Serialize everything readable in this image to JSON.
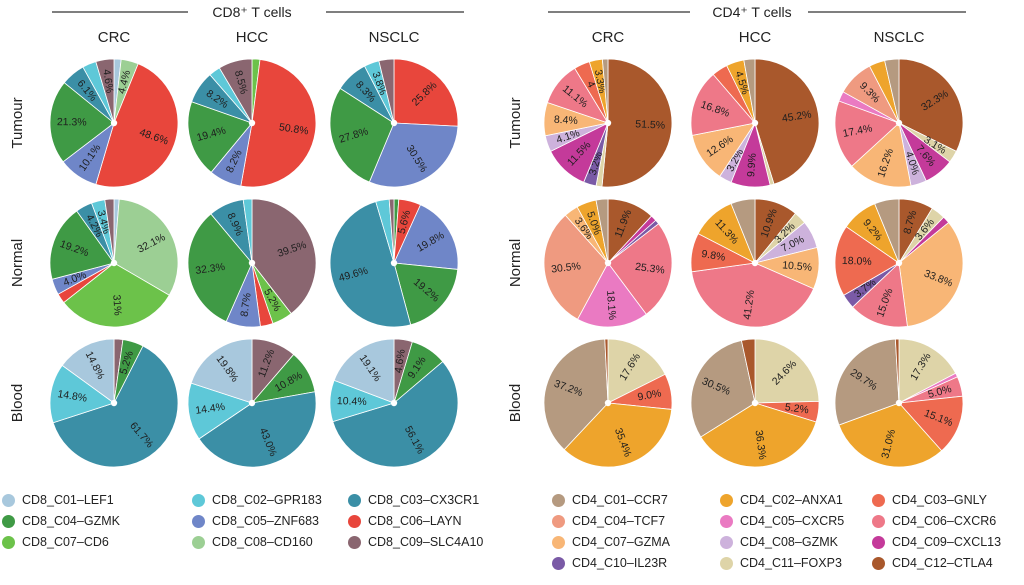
{
  "chart_data": [
    {
      "type": "pie",
      "title": "CD8⁺ T cells",
      "columns": [
        "CRC",
        "HCC",
        "NSCLC"
      ],
      "rows": [
        "Tumour",
        "Normal",
        "Blood"
      ],
      "legend": [
        {
          "name": "CD8_C01–LEF1",
          "color": "#a8c8dd"
        },
        {
          "name": "CD8_C02–GPR183",
          "color": "#5ec8d8"
        },
        {
          "name": "CD8_C03–CX3CR1",
          "color": "#3b8fa6"
        },
        {
          "name": "CD8_C04–GZMK",
          "color": "#3f9a45"
        },
        {
          "name": "CD8_C05–ZNF683",
          "color": "#6f86c8"
        },
        {
          "name": "CD8_C06–LAYN",
          "color": "#e8463c"
        },
        {
          "name": "CD8_C07–CD6",
          "color": "#6cc24a"
        },
        {
          "name": "CD8_C08–CD160",
          "color": "#9ccf94"
        },
        {
          "name": "CD8_C09–SLC4A10",
          "color": "#8a6670"
        }
      ],
      "pies": [
        {
          "row": "Tumour",
          "col": "CRC",
          "slices": [
            {
              "cluster": 0,
              "value": 1.8,
              "label": ""
            },
            {
              "cluster": 7,
              "value": 4.4,
              "label": "4.4%"
            },
            {
              "cluster": 5,
              "value": 48.6,
              "label": "48.6%"
            },
            {
              "cluster": 4,
              "value": 10.1,
              "label": "10.1%"
            },
            {
              "cluster": 3,
              "value": 21.3,
              "label": "21.3%"
            },
            {
              "cluster": 2,
              "value": 6.1,
              "label": "6.1%"
            },
            {
              "cluster": 1,
              "value": 3.5,
              "label": ""
            },
            {
              "cluster": 8,
              "value": 4.6,
              "label": "4.6%"
            }
          ]
        },
        {
          "row": "Tumour",
          "col": "HCC",
          "slices": [
            {
              "cluster": 6,
              "value": 2.0,
              "label": ""
            },
            {
              "cluster": 5,
              "value": 50.8,
              "label": "50.8%"
            },
            {
              "cluster": 4,
              "value": 8.2,
              "label": "8.2%"
            },
            {
              "cluster": 3,
              "value": 19.4,
              "label": "19.4%"
            },
            {
              "cluster": 2,
              "value": 8.2,
              "label": "8.2%"
            },
            {
              "cluster": 1,
              "value": 2.9,
              "label": ""
            },
            {
              "cluster": 8,
              "value": 8.5,
              "label": "8.5%"
            }
          ]
        },
        {
          "row": "Tumour",
          "col": "NSCLC",
          "slices": [
            {
              "cluster": 5,
              "value": 25.8,
              "label": "25.8%"
            },
            {
              "cluster": 4,
              "value": 30.5,
              "label": "30.5%"
            },
            {
              "cluster": 3,
              "value": 27.8,
              "label": "27.8%"
            },
            {
              "cluster": 2,
              "value": 8.3,
              "label": "8.3%"
            },
            {
              "cluster": 1,
              "value": 3.8,
              "label": "3.8%"
            },
            {
              "cluster": 8,
              "value": 3.8,
              "label": ""
            }
          ]
        },
        {
          "row": "Normal",
          "col": "CRC",
          "slices": [
            {
              "cluster": 0,
              "value": 1.3,
              "label": ""
            },
            {
              "cluster": 7,
              "value": 32.1,
              "label": "32.1%"
            },
            {
              "cluster": 6,
              "value": 31.0,
              "label": "31%"
            },
            {
              "cluster": 5,
              "value": 2.5,
              "label": ""
            },
            {
              "cluster": 4,
              "value": 4.0,
              "label": "4.0%"
            },
            {
              "cluster": 3,
              "value": 19.2,
              "label": "19.2%"
            },
            {
              "cluster": 2,
              "value": 4.2,
              "label": "4.2%"
            },
            {
              "cluster": 1,
              "value": 3.4,
              "label": "3.4%"
            },
            {
              "cluster": 8,
              "value": 2.3,
              "label": ""
            }
          ]
        },
        {
          "row": "Normal",
          "col": "HCC",
          "slices": [
            {
              "cluster": 8,
              "value": 39.5,
              "label": "39.5%"
            },
            {
              "cluster": 6,
              "value": 5.2,
              "label": "5.2%"
            },
            {
              "cluster": 5,
              "value": 3.2,
              "label": ""
            },
            {
              "cluster": 4,
              "value": 8.7,
              "label": "8.7%"
            },
            {
              "cluster": 3,
              "value": 32.3,
              "label": "32.3%"
            },
            {
              "cluster": 2,
              "value": 8.9,
              "label": "8.9%"
            },
            {
              "cluster": 1,
              "value": 2.2,
              "label": ""
            }
          ]
        },
        {
          "row": "Normal",
          "col": "NSCLC",
          "slices": [
            {
              "cluster": 3,
              "value": 1.2,
              "label": ""
            },
            {
              "cluster": 5,
              "value": 5.6,
              "label": "5.6%"
            },
            {
              "cluster": 4,
              "value": 19.8,
              "label": "19.8%"
            },
            {
              "cluster": 3,
              "value": 19.2,
              "label": "19.2%"
            },
            {
              "cluster": 2,
              "value": 49.6,
              "label": "49.6%"
            },
            {
              "cluster": 1,
              "value": 3.4,
              "label": ""
            },
            {
              "cluster": 8,
              "value": 1.2,
              "label": ""
            }
          ]
        },
        {
          "row": "Blood",
          "col": "CRC",
          "slices": [
            {
              "cluster": 8,
              "value": 2.2,
              "label": ""
            },
            {
              "cluster": 3,
              "value": 5.2,
              "label": "5.2%"
            },
            {
              "cluster": 2,
              "value": 61.7,
              "label": "61.7%"
            },
            {
              "cluster": 1,
              "value": 14.8,
              "label": "14.8%"
            },
            {
              "cluster": 0,
              "value": 14.8,
              "label": "14.8%"
            }
          ]
        },
        {
          "row": "Blood",
          "col": "HCC",
          "slices": [
            {
              "cluster": 8,
              "value": 11.2,
              "label": "11.2%"
            },
            {
              "cluster": 3,
              "value": 10.8,
              "label": "10.8%"
            },
            {
              "cluster": 2,
              "value": 43.0,
              "label": "43.0%"
            },
            {
              "cluster": 1,
              "value": 14.4,
              "label": "14.4%"
            },
            {
              "cluster": 0,
              "value": 19.8,
              "label": "19.8%"
            }
          ]
        },
        {
          "row": "Blood",
          "col": "NSCLC",
          "slices": [
            {
              "cluster": 8,
              "value": 4.6,
              "label": "4.6%"
            },
            {
              "cluster": 3,
              "value": 9.1,
              "label": "9.1%"
            },
            {
              "cluster": 2,
              "value": 56.1,
              "label": "56.1%"
            },
            {
              "cluster": 1,
              "value": 10.4,
              "label": "10.4%"
            },
            {
              "cluster": 0,
              "value": 19.1,
              "label": "19.1%"
            }
          ]
        }
      ]
    },
    {
      "type": "pie",
      "title": "CD4⁺ T cells",
      "columns": [
        "CRC",
        "HCC",
        "NSCLC"
      ],
      "rows": [
        "Tumour",
        "Normal",
        "Blood"
      ],
      "legend": [
        {
          "name": "CD4_C01–CCR7",
          "color": "#b59a80"
        },
        {
          "name": "CD4_C02–ANXA1",
          "color": "#eea42c"
        },
        {
          "name": "CD4_C03–GNLY",
          "color": "#ee6a50"
        },
        {
          "name": "CD4_C04–TCF7",
          "color": "#ef9a80"
        },
        {
          "name": "CD4_C05–CXCR5",
          "color": "#ea7ac2"
        },
        {
          "name": "CD4_C06–CXCR6",
          "color": "#ee7888"
        },
        {
          "name": "CD4_C07–GZMA",
          "color": "#f8b676"
        },
        {
          "name": "CD4_C08–GZMK",
          "color": "#cdb2dc"
        },
        {
          "name": "CD4_C09–CXCL13",
          "color": "#c43a9a"
        },
        {
          "name": "CD4_C10–IL23R",
          "color": "#7a5aa6"
        },
        {
          "name": "CD4_C11–FOXP3",
          "color": "#ded4a8"
        },
        {
          "name": "CD4_C12–CTLA4",
          "color": "#a9582c"
        }
      ],
      "pies": [
        {
          "row": "Tumour",
          "col": "CRC",
          "slices": [
            {
              "cluster": 11,
              "value": 51.5,
              "label": "51.5%"
            },
            {
              "cluster": 10,
              "value": 1.5,
              "label": ""
            },
            {
              "cluster": 9,
              "value": 3.2,
              "label": "3.2%"
            },
            {
              "cluster": 8,
              "value": 11.5,
              "label": "11.5%"
            },
            {
              "cluster": 7,
              "value": 4.1,
              "label": "4.1%"
            },
            {
              "cluster": 6,
              "value": 8.4,
              "label": "8.4%"
            },
            {
              "cluster": 5,
              "value": 11.1,
              "label": "11.1%"
            },
            {
              "cluster": 2,
              "value": 4.0,
              "label": "4"
            },
            {
              "cluster": 1,
              "value": 3.3,
              "label": "3.3%"
            },
            {
              "cluster": 0,
              "value": 1.4,
              "label": ""
            }
          ]
        },
        {
          "row": "Tumour",
          "col": "HCC",
          "slices": [
            {
              "cluster": 11,
              "value": 45.2,
              "label": "45.2%"
            },
            {
              "cluster": 10,
              "value": 1.0,
              "label": ""
            },
            {
              "cluster": 8,
              "value": 9.9,
              "label": "9.9%"
            },
            {
              "cluster": 7,
              "value": 3.2,
              "label": "3.2%"
            },
            {
              "cluster": 6,
              "value": 12.6,
              "label": "12.6%"
            },
            {
              "cluster": 5,
              "value": 16.8,
              "label": "16.8%"
            },
            {
              "cluster": 2,
              "value": 4.0,
              "label": ""
            },
            {
              "cluster": 1,
              "value": 4.5,
              "label": "4.5%"
            },
            {
              "cluster": 0,
              "value": 2.8,
              "label": ""
            }
          ]
        },
        {
          "row": "Tumour",
          "col": "NSCLC",
          "slices": [
            {
              "cluster": 11,
              "value": 32.3,
              "label": "32.3%"
            },
            {
              "cluster": 10,
              "value": 3.1,
              "label": "3.1%"
            },
            {
              "cluster": 8,
              "value": 7.6,
              "label": "7.6%"
            },
            {
              "cluster": 7,
              "value": 4.0,
              "label": "4.0%"
            },
            {
              "cluster": 6,
              "value": 16.2,
              "label": "16.2%"
            },
            {
              "cluster": 5,
              "value": 17.4,
              "label": "17.4%"
            },
            {
              "cluster": 4,
              "value": 2.5,
              "label": ""
            },
            {
              "cluster": 3,
              "value": 9.3,
              "label": "9.3%"
            },
            {
              "cluster": 1,
              "value": 4.0,
              "label": ""
            },
            {
              "cluster": 0,
              "value": 3.6,
              "label": ""
            }
          ]
        },
        {
          "row": "Normal",
          "col": "CRC",
          "slices": [
            {
              "cluster": 11,
              "value": 11.9,
              "label": "11.9%"
            },
            {
              "cluster": 8,
              "value": 1.5,
              "label": ""
            },
            {
              "cluster": 9,
              "value": 1.1,
              "label": ""
            },
            {
              "cluster": 5,
              "value": 25.3,
              "label": "25.3%"
            },
            {
              "cluster": 4,
              "value": 18.1,
              "label": "18.1%"
            },
            {
              "cluster": 3,
              "value": 30.5,
              "label": "30.5%"
            },
            {
              "cluster": 6,
              "value": 3.6,
              "label": "3.6%"
            },
            {
              "cluster": 1,
              "value": 5.0,
              "label": "5.0%"
            },
            {
              "cluster": 0,
              "value": 3.0,
              "label": ""
            }
          ]
        },
        {
          "row": "Normal",
          "col": "HCC",
          "slices": [
            {
              "cluster": 11,
              "value": 10.9,
              "label": "10.9%"
            },
            {
              "cluster": 10,
              "value": 3.2,
              "label": "3.2%"
            },
            {
              "cluster": 7,
              "value": 7.0,
              "label": "7.0%"
            },
            {
              "cluster": 6,
              "value": 10.5,
              "label": "10.5%"
            },
            {
              "cluster": 5,
              "value": 41.2,
              "label": "41.2%"
            },
            {
              "cluster": 2,
              "value": 9.8,
              "label": "9.8%"
            },
            {
              "cluster": 1,
              "value": 11.3,
              "label": "11.3%"
            },
            {
              "cluster": 0,
              "value": 6.1,
              "label": ""
            }
          ]
        },
        {
          "row": "Normal",
          "col": "NSCLC",
          "slices": [
            {
              "cluster": 11,
              "value": 8.7,
              "label": "8.7%"
            },
            {
              "cluster": 10,
              "value": 3.6,
              "label": "3.6%"
            },
            {
              "cluster": 8,
              "value": 1.8,
              "label": ""
            },
            {
              "cluster": 6,
              "value": 33.8,
              "label": "33.8%"
            },
            {
              "cluster": 5,
              "value": 15.0,
              "label": "15.0%"
            },
            {
              "cluster": 9,
              "value": 3.7,
              "label": "3.7%"
            },
            {
              "cluster": 2,
              "value": 18.0,
              "label": "18.0%"
            },
            {
              "cluster": 1,
              "value": 9.2,
              "label": "9.2%"
            },
            {
              "cluster": 0,
              "value": 6.2,
              "label": ""
            }
          ]
        },
        {
          "row": "Blood",
          "col": "CRC",
          "slices": [
            {
              "cluster": 10,
              "value": 17.6,
              "label": "17.6%"
            },
            {
              "cluster": 2,
              "value": 9.0,
              "label": "9.0%"
            },
            {
              "cluster": 1,
              "value": 35.4,
              "label": "35.4%"
            },
            {
              "cluster": 0,
              "value": 37.2,
              "label": "37.2%"
            },
            {
              "cluster": 11,
              "value": 0.8,
              "label": ""
            }
          ]
        },
        {
          "row": "Blood",
          "col": "HCC",
          "slices": [
            {
              "cluster": 10,
              "value": 24.6,
              "label": "24.6%"
            },
            {
              "cluster": 2,
              "value": 5.2,
              "label": "5.2%"
            },
            {
              "cluster": 1,
              "value": 36.3,
              "label": "36.3%"
            },
            {
              "cluster": 0,
              "value": 30.5,
              "label": "30.5%"
            },
            {
              "cluster": 11,
              "value": 3.4,
              "label": ""
            }
          ]
        },
        {
          "row": "Blood",
          "col": "NSCLC",
          "slices": [
            {
              "cluster": 10,
              "value": 17.3,
              "label": "17.3%"
            },
            {
              "cluster": 4,
              "value": 1.0,
              "label": ""
            },
            {
              "cluster": 5,
              "value": 5.0,
              "label": "5.0%"
            },
            {
              "cluster": 2,
              "value": 15.1,
              "label": "15.1%"
            },
            {
              "cluster": 1,
              "value": 31.0,
              "label": "31.0%"
            },
            {
              "cluster": 0,
              "value": 29.7,
              "label": "29.7%"
            },
            {
              "cluster": 11,
              "value": 0.9,
              "label": ""
            }
          ]
        }
      ]
    }
  ]
}
